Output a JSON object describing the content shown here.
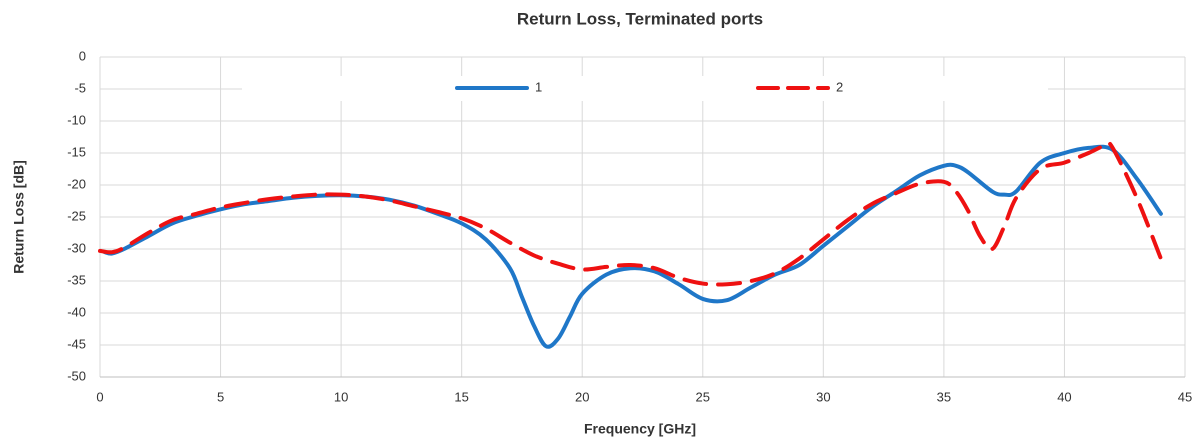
{
  "chart_data": {
    "type": "line",
    "title": "Return Loss, Terminated ports",
    "x_label": "Frequency [GHz]",
    "y_label": "Return Loss [dB]",
    "xlim": [
      0,
      45
    ],
    "xticks": [
      0,
      5,
      10,
      15,
      20,
      25,
      30,
      35,
      40,
      45
    ],
    "ylim": [
      -50,
      0
    ],
    "yticks": [
      0,
      -5,
      -10,
      -15,
      -20,
      -25,
      -30,
      -35,
      -40,
      -45,
      -50
    ],
    "grid": true,
    "legend": "top",
    "series": [
      {
        "name": "1",
        "color": "#1f77c8",
        "dash": "solid",
        "x": [
          0.2,
          0.5,
          1,
          2,
          3,
          4,
          5,
          6,
          7,
          8,
          9,
          10,
          11,
          12,
          13,
          14,
          15,
          16,
          17,
          17.5,
          18,
          18.5,
          19,
          19.5,
          20,
          21,
          22,
          23,
          24,
          25,
          26,
          27,
          28,
          29,
          30,
          31,
          32,
          33,
          34,
          35,
          35.5,
          36,
          37,
          37.5,
          38,
          39,
          40,
          41,
          42,
          43,
          44
        ],
        "values": [
          -30.5,
          -30.7,
          -30,
          -28,
          -26,
          -24.8,
          -23.8,
          -23,
          -22.5,
          -22,
          -21.7,
          -21.6,
          -21.8,
          -22.3,
          -23.2,
          -24.5,
          -26,
          -28.5,
          -33,
          -37.5,
          -42,
          -45.2,
          -44,
          -40.5,
          -37,
          -34,
          -33,
          -33.5,
          -35.5,
          -37.8,
          -38,
          -36,
          -34,
          -32.5,
          -29.5,
          -26.5,
          -23.5,
          -21,
          -18.5,
          -17,
          -17,
          -18,
          -21,
          -21.5,
          -21,
          -16.5,
          -15,
          -14.2,
          -14.5,
          -19,
          -24.5
        ]
      },
      {
        "name": "2",
        "color": "#ee1111",
        "dash": "dashed",
        "x": [
          0,
          0.5,
          1,
          2,
          3,
          4,
          5,
          6,
          7,
          8,
          9,
          10,
          11,
          12,
          13,
          14,
          15,
          16,
          17,
          18,
          19,
          20,
          21,
          22,
          23,
          24,
          25,
          26,
          27,
          28,
          29,
          30,
          31,
          32,
          33,
          34,
          35,
          35.5,
          36,
          36.5,
          37,
          37.5,
          38,
          39,
          40,
          41,
          41.7,
          42,
          43,
          44
        ],
        "values": [
          -30.3,
          -30.5,
          -29.8,
          -27.5,
          -25.5,
          -24.5,
          -23.5,
          -22.8,
          -22.2,
          -21.8,
          -21.5,
          -21.5,
          -21.8,
          -22.4,
          -23.3,
          -24.2,
          -25.2,
          -26.8,
          -29,
          -31,
          -32.3,
          -33.2,
          -32.8,
          -32.5,
          -33,
          -34.5,
          -35.4,
          -35.5,
          -35,
          -33.8,
          -31.5,
          -28.5,
          -25.5,
          -23,
          -21.3,
          -19.8,
          -19.5,
          -21,
          -24,
          -28,
          -30,
          -26.5,
          -22,
          -17.5,
          -16.5,
          -15,
          -13.8,
          -14.2,
          -22,
          -31.5
        ]
      }
    ]
  }
}
